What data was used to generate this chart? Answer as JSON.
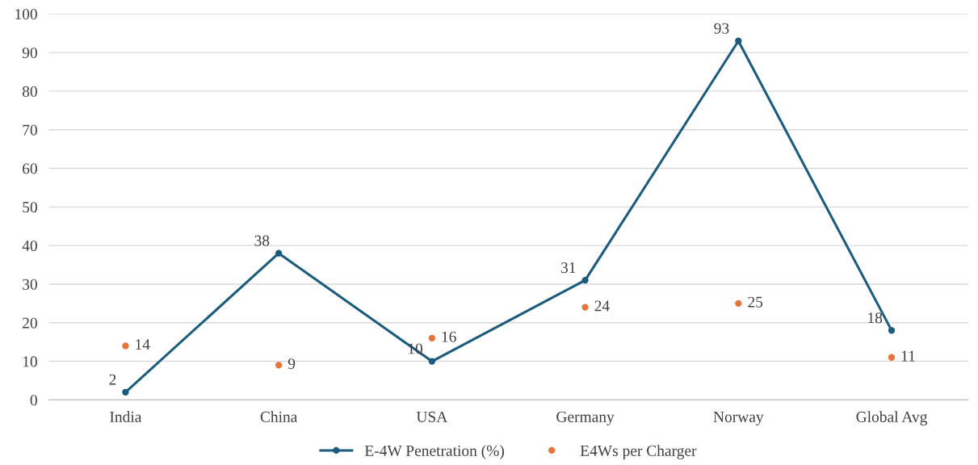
{
  "chart_data": {
    "type": "line",
    "categories": [
      "India",
      "China",
      "USA",
      "Germany",
      "Norway",
      "Global Avg"
    ],
    "series": [
      {
        "name": "E-4W Penetration (%)",
        "color": "#1b5b7e",
        "marker": "circle",
        "values": [
          2,
          38,
          10,
          31,
          93,
          18
        ]
      },
      {
        "name": "E4Ws per Charger",
        "color": "#e8743b",
        "type": "scatter",
        "marker": "circle",
        "values": [
          14,
          9,
          16,
          24,
          25,
          11
        ]
      }
    ],
    "ylim": [
      0,
      100
    ],
    "yticks": [
      0,
      10,
      20,
      30,
      40,
      50,
      60,
      70,
      80,
      90,
      100
    ],
    "grid": "y",
    "legend": "bottom",
    "data_labels": true
  }
}
